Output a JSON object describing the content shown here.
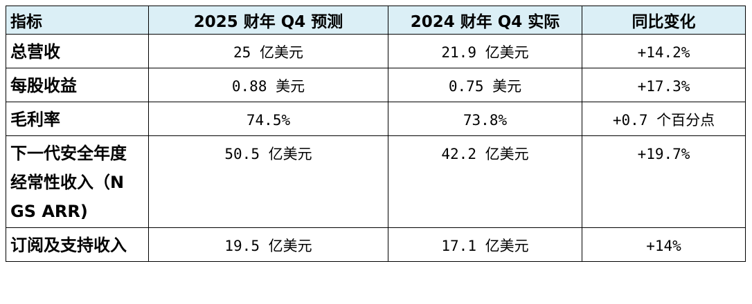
{
  "table": {
    "header": [
      "指标",
      "2025 财年 Q4 预测",
      "2024 财年 Q4 实际",
      "同比变化"
    ],
    "rows": [
      [
        "总营收",
        "25 亿美元",
        "21.9 亿美元",
        "+14.2%"
      ],
      [
        "每股收益",
        "0.88 美元",
        "0.75 美元",
        "+17.3%"
      ],
      [
        "毛利率",
        "74.5%",
        "73.8%",
        "+0.7 个百分点"
      ],
      [
        "下一代安全年度经常性收入（NGS ARR)",
        "50.5 亿美元",
        "42.2 亿美元",
        "+19.7%"
      ],
      [
        "订阅及支持收入",
        "19.5 亿美元",
        "17.1 亿美元",
        "+14%"
      ]
    ]
  }
}
